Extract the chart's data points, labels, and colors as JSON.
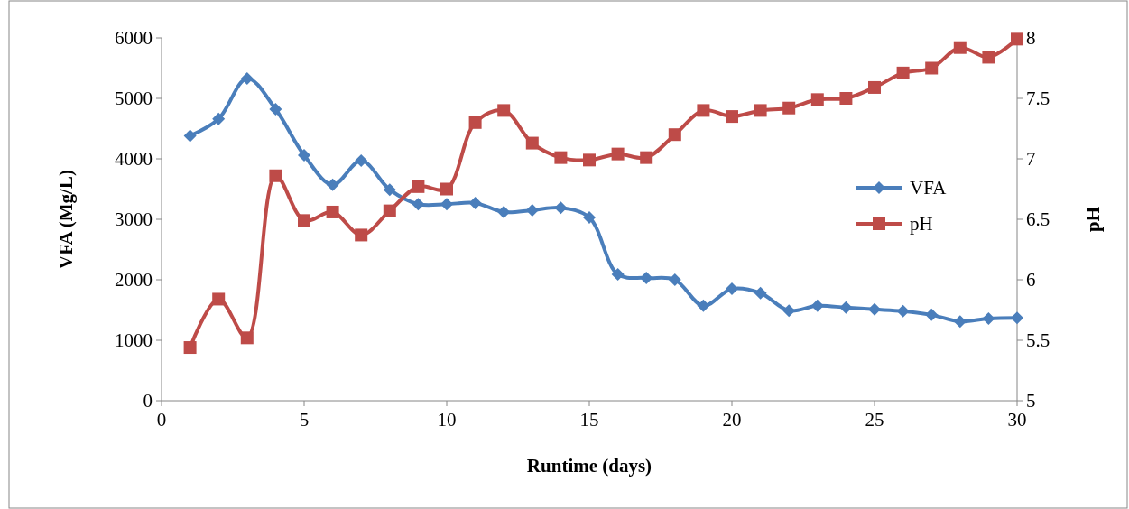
{
  "chart_data": {
    "type": "line",
    "xlabel": "Runtime (days)",
    "ylabel": "VFA (Mg/L)",
    "y2label": "pH",
    "x": [
      1,
      2,
      3,
      4,
      5,
      6,
      7,
      8,
      9,
      10,
      11,
      12,
      13,
      14,
      15,
      16,
      17,
      18,
      19,
      20,
      21,
      22,
      23,
      24,
      25,
      26,
      27,
      28,
      29,
      30
    ],
    "xlim": [
      0,
      30
    ],
    "xticks": [
      0,
      5,
      10,
      15,
      20,
      25,
      30
    ],
    "ylim": [
      0,
      6000
    ],
    "yticks": [
      0,
      1000,
      2000,
      3000,
      4000,
      5000,
      6000
    ],
    "y2lim": [
      5,
      8
    ],
    "y2ticks": [
      5,
      5.5,
      6,
      6.5,
      7,
      7.5,
      8
    ],
    "grid": false,
    "legend": "right",
    "series": [
      {
        "name": "VFA",
        "color": "#4a7ebb",
        "marker": "diamond",
        "values": [
          4380,
          4660,
          5330,
          4820,
          4060,
          3570,
          3970,
          3490,
          3250,
          3250,
          3270,
          3120,
          3150,
          3190,
          3030,
          2090,
          2030,
          2000,
          1570,
          1850,
          1780,
          1490,
          1570,
          1540,
          1510,
          1480,
          1420,
          1310,
          1360,
          1370
        ]
      },
      {
        "name": "pH",
        "color": "#be4b48",
        "marker": "square",
        "axis": "y2",
        "values": [
          5.44,
          5.84,
          5.52,
          6.86,
          6.49,
          6.56,
          6.37,
          6.57,
          6.77,
          6.75,
          7.3,
          7.4,
          7.13,
          7.01,
          6.99,
          7.04,
          7.01,
          7.2,
          7.4,
          7.35,
          7.4,
          7.42,
          7.49,
          7.5,
          7.59,
          7.71,
          7.75,
          7.92,
          7.84,
          7.99
        ]
      }
    ]
  }
}
